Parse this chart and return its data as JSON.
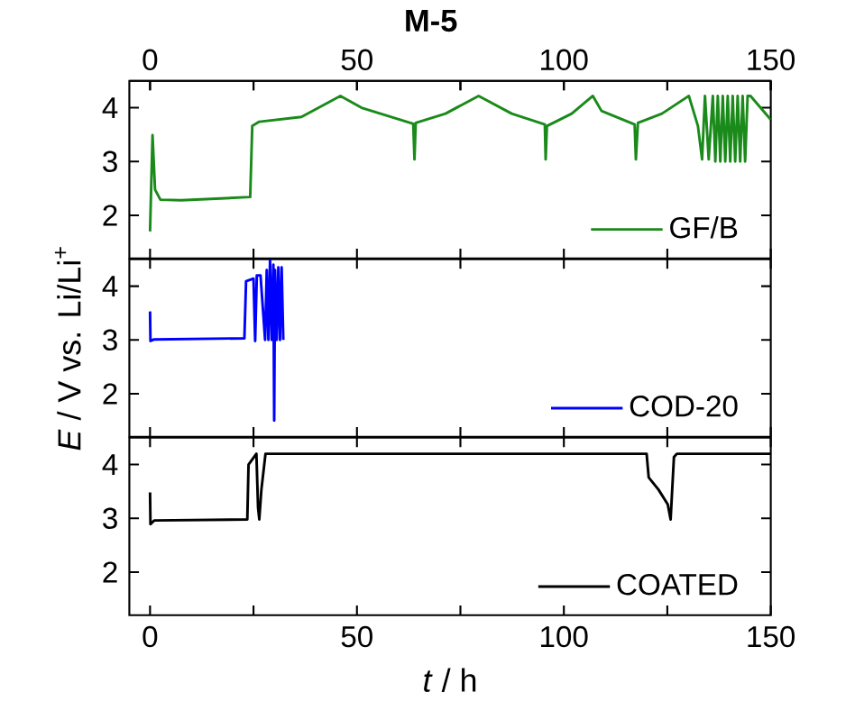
{
  "chart_data": [
    {
      "type": "line",
      "title": "M-5",
      "xlim": [
        -5,
        150
      ],
      "ylim": [
        1.2,
        4.5
      ],
      "xticks": [
        0,
        {
          "value": 25,
          "label": null
        },
        50,
        {
          "value": 75,
          "label": null
        },
        100,
        {
          "value": 125,
          "label": null
        },
        150
      ],
      "x2lim": [
        -5,
        150
      ],
      "x2ticks": [
        0,
        {
          "value": 25,
          "label": null
        },
        50,
        {
          "value": 75,
          "label": null
        },
        100,
        {
          "value": 125,
          "label": null
        },
        150
      ],
      "yticks": [
        2,
        3,
        4
      ],
      "tick_labels": "y",
      "legend": "bottom right",
      "x": [
        0,
        0.6,
        1.2,
        2.5,
        7.5,
        24.2,
        24.7,
        26.4,
        36.6,
        46,
        51.1,
        63.6,
        63.9,
        64.2,
        71.4,
        79.4,
        87.4,
        95.4,
        95.6,
        95.9,
        101.9,
        107,
        109.1,
        117.1,
        117.4,
        117.9,
        123.7,
        130.2,
        132.4,
        133.4,
        134.1,
        135,
        136,
        136.6,
        137.2,
        137.8,
        138.4,
        139,
        139.6,
        140.2,
        140.8,
        141.4,
        142,
        142.6,
        143.2,
        143.8,
        144.4,
        145.1,
        150
      ],
      "series": [
        {
          "name": "GF/B",
          "color": "#1a8a1a",
          "values": [
            1.7,
            3.49,
            2.48,
            2.29,
            2.28,
            2.34,
            3.66,
            3.74,
            3.83,
            4.22,
            4.0,
            3.7,
            3.04,
            3.72,
            3.89,
            4.22,
            3.89,
            3.69,
            3.04,
            3.66,
            3.89,
            4.22,
            3.94,
            3.69,
            3.04,
            3.72,
            3.89,
            4.22,
            3.66,
            3.04,
            4.22,
            3.04,
            4.22,
            3.0,
            4.22,
            3.0,
            4.22,
            3.0,
            4.22,
            3.0,
            4.22,
            3.0,
            4.22,
            3.0,
            4.22,
            3.0,
            4.22,
            4.22,
            3.78
          ]
        }
      ]
    },
    {
      "type": "line",
      "ylabel": "*E* / V vs. Li/Li$^{+}$",
      "xlim": [
        -5,
        150
      ],
      "ylim": [
        1.2,
        4.5
      ],
      "xticks": [
        0,
        {
          "value": 25,
          "label": null
        },
        50,
        {
          "value": 75,
          "label": null
        },
        100,
        {
          "value": 125,
          "label": null
        },
        150
      ],
      "yticks": [
        2,
        3,
        4
      ],
      "tick_labels": "y",
      "legend": "bottom right",
      "x": [
        0,
        0.1,
        1,
        22.8,
        23.2,
        25,
        25.4,
        25.8,
        26.7,
        27.8,
        28.2,
        28.6,
        29.0,
        29.4,
        29.8,
        30.0,
        30.2,
        30.6,
        31.0,
        31.4,
        31.8,
        32.2
      ],
      "series": [
        {
          "name": "COD-20",
          "color": "#0000ff",
          "values": [
            3.53,
            2.98,
            3.01,
            3.03,
            4.09,
            4.14,
            2.98,
            4.2,
            4.2,
            3.0,
            4.3,
            3.0,
            4.5,
            3.0,
            4.4,
            1.5,
            4.3,
            3.0,
            4.35,
            3.0,
            4.35,
            3.0
          ]
        }
      ]
    },
    {
      "type": "line",
      "xlabel": "*t* / h",
      "xlim": [
        -5,
        150
      ],
      "ylim": [
        1.2,
        4.5
      ],
      "xticks": [
        0,
        {
          "value": 25,
          "label": null
        },
        50,
        {
          "value": 75,
          "label": null
        },
        100,
        {
          "value": 125,
          "label": null
        },
        150
      ],
      "yticks": [
        2,
        3,
        4
      ],
      "legend": "bottom right",
      "x": [
        0,
        0.1,
        1,
        23.5,
        23.8,
        25.7,
        26.1,
        26.4,
        26.9,
        27.9,
        120,
        120.5,
        122.9,
        125.1,
        125.8,
        126.6,
        127.3,
        150
      ],
      "series": [
        {
          "name": "COATED",
          "color": "#000000",
          "values": [
            3.48,
            2.89,
            2.96,
            2.98,
            4.0,
            4.2,
            3.2,
            2.98,
            3.53,
            4.2,
            4.2,
            3.76,
            3.53,
            3.26,
            2.98,
            4.14,
            4.2,
            4.2
          ]
        }
      ]
    }
  ]
}
